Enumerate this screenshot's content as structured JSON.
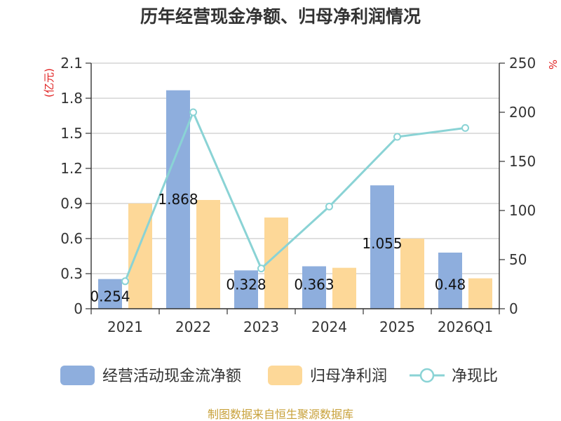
{
  "chart_data": {
    "type": "bar",
    "title": "历年经营现金净额、归母净利润情况",
    "categories": [
      "2021",
      "2022",
      "2023",
      "2024",
      "2025",
      "2026Q1"
    ],
    "left_axis": {
      "unit": "(亿元)",
      "ylim": [
        0,
        2.1
      ],
      "ticks": [
        "0",
        "0.3",
        "0.6",
        "0.9",
        "1.2",
        "1.5",
        "1.8",
        "2.1"
      ]
    },
    "right_axis": {
      "unit": "%",
      "ylim": [
        0,
        250
      ],
      "ticks": [
        "0",
        "50",
        "100",
        "150",
        "200",
        "250"
      ]
    },
    "series": [
      {
        "name": "经营活动现金流净额",
        "type": "bar",
        "axis": "left",
        "color": "#8eaedd",
        "values": [
          0.254,
          1.868,
          0.328,
          0.363,
          1.055,
          0.48
        ],
        "labels": [
          "0.254",
          "1.868",
          "0.328",
          "0.363",
          "1.055",
          "0.48"
        ]
      },
      {
        "name": "归母净利润",
        "type": "bar",
        "axis": "left",
        "color": "#fdd898",
        "values": [
          0.9,
          0.93,
          0.78,
          0.35,
          0.6,
          0.26
        ]
      },
      {
        "name": "净现比",
        "type": "line",
        "axis": "right",
        "color": "#8ad3d5",
        "values": [
          28,
          200,
          41,
          104,
          175,
          184
        ]
      }
    ],
    "grid": true,
    "legend": "bottom"
  },
  "footer": {
    "source": "制图数据来自恒生聚源数据库"
  }
}
